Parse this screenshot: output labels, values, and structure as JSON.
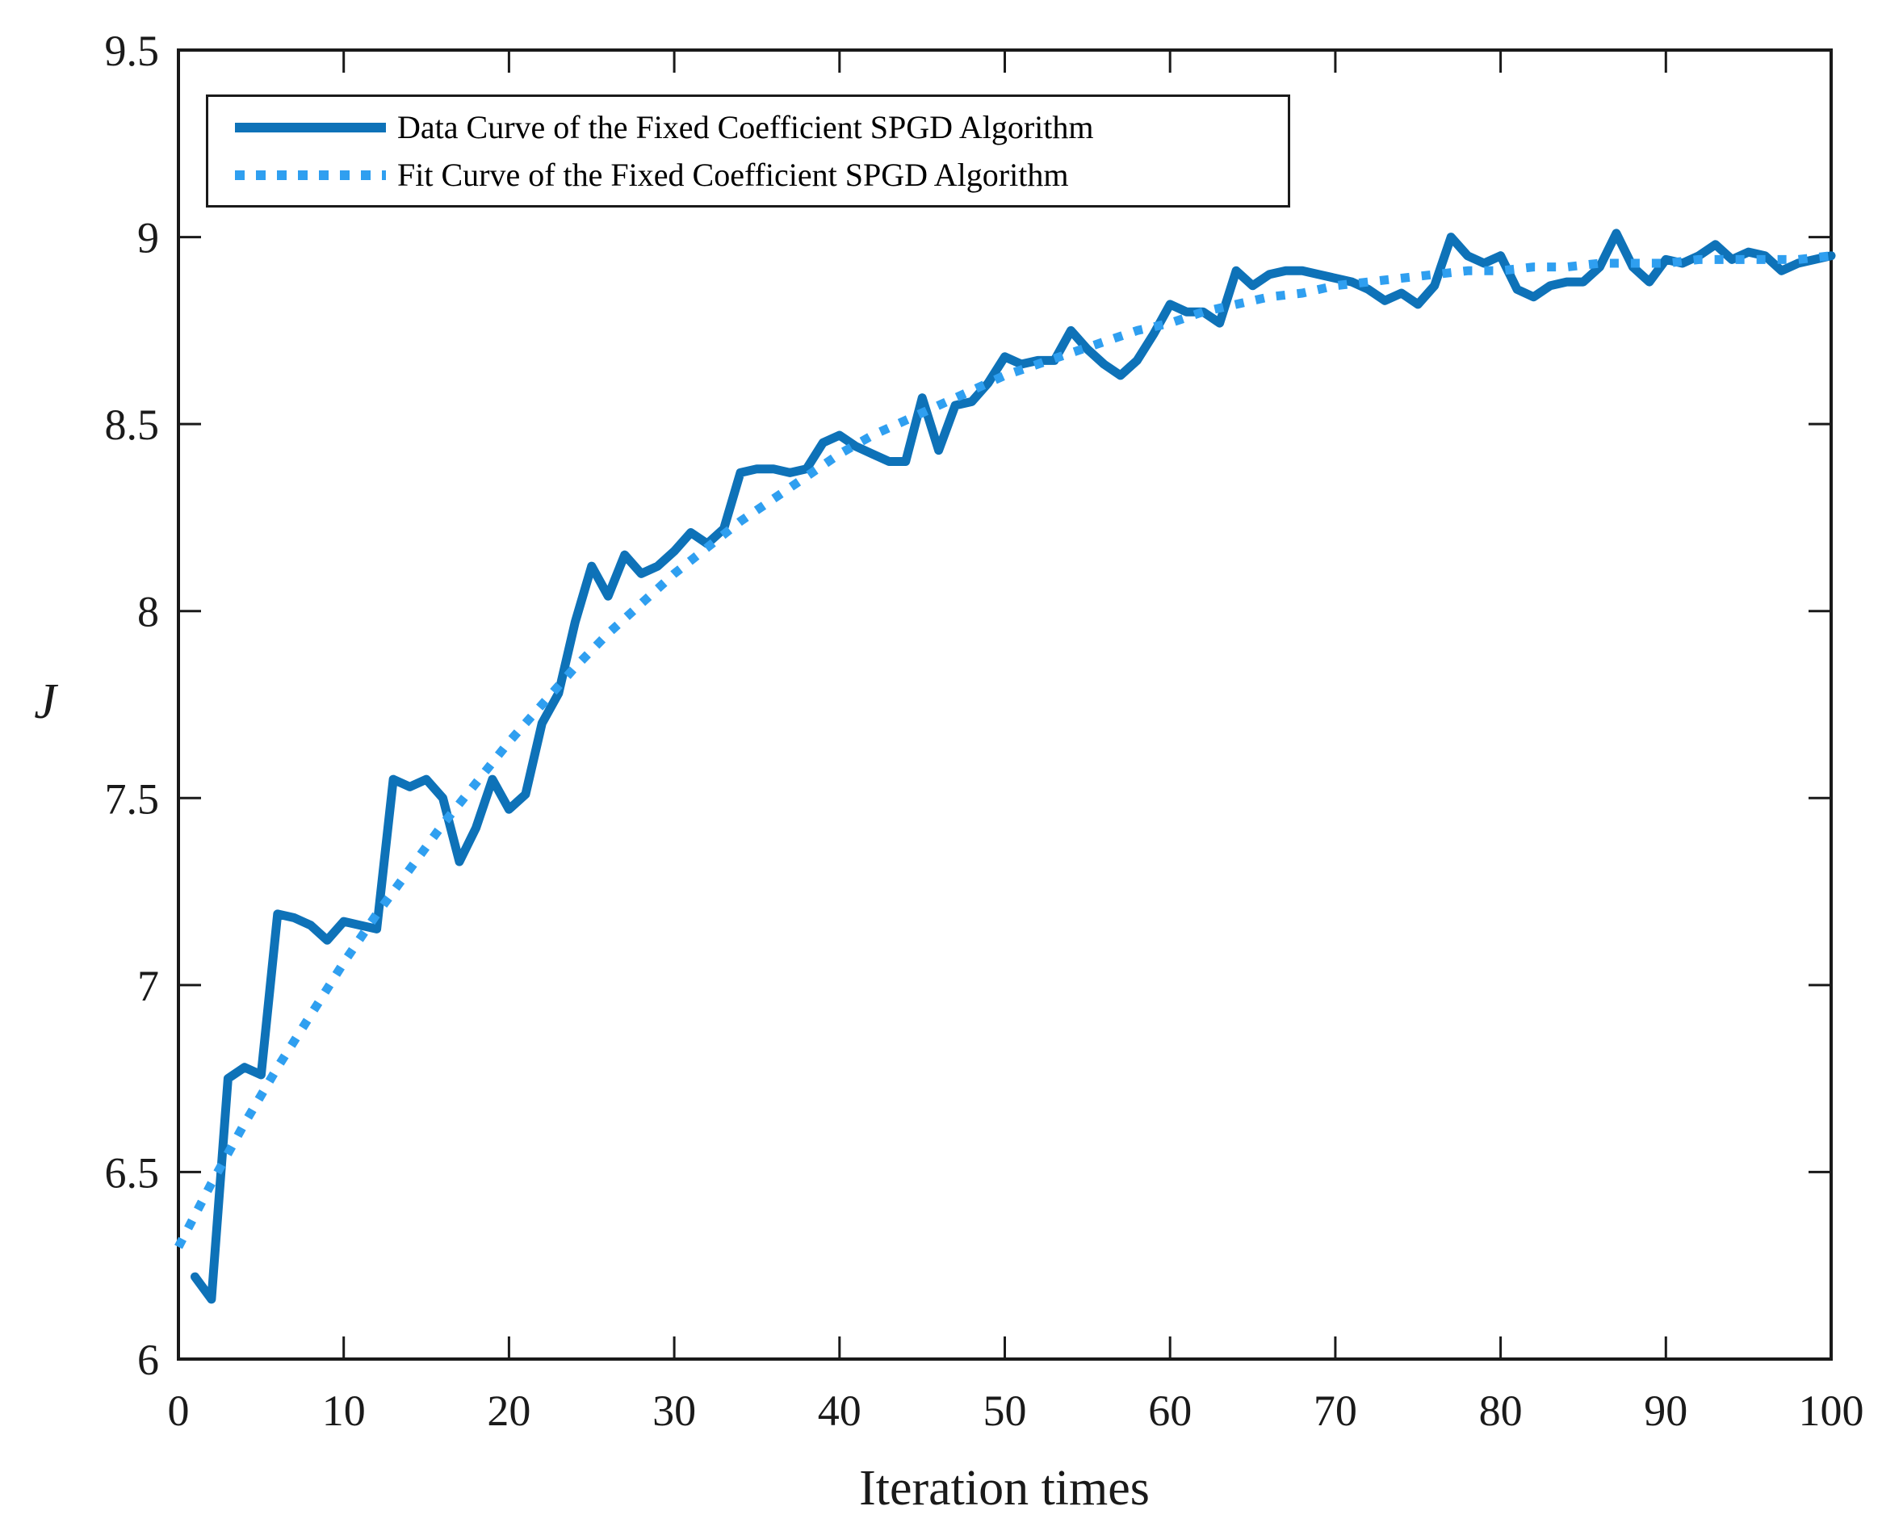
{
  "figure": {
    "background": "#ffffff",
    "axis_color": "#1a1a1a"
  },
  "chart_data": {
    "type": "line",
    "title": "",
    "xlabel": "Iteration times",
    "ylabel": "J",
    "xlim": [
      0,
      100
    ],
    "ylim": [
      6,
      9.5
    ],
    "grid": false,
    "legend_position": "top-left",
    "x_ticks": [
      0,
      10,
      20,
      30,
      40,
      50,
      60,
      70,
      80,
      90,
      100
    ],
    "x_tick_labels": [
      "0",
      "10",
      "20",
      "30",
      "40",
      "50",
      "60",
      "70",
      "80",
      "90",
      "100"
    ],
    "y_ticks": [
      6,
      6.5,
      7,
      7.5,
      8,
      8.5,
      9,
      9.5
    ],
    "y_tick_labels": [
      "6",
      "6.5",
      "7",
      "7.5",
      "8",
      "8.5",
      "9",
      "9.5"
    ],
    "series": [
      {
        "name": "Data Curve of the Fixed Coefficient SPGD Algorithm",
        "style": "solid",
        "color": "#0e72b8",
        "width": 11,
        "x": [
          1,
          2,
          3,
          4,
          5,
          6,
          7,
          8,
          9,
          10,
          11,
          12,
          13,
          14,
          15,
          16,
          17,
          18,
          19,
          20,
          21,
          22,
          23,
          24,
          25,
          26,
          27,
          28,
          29,
          30,
          31,
          32,
          33,
          34,
          35,
          36,
          37,
          38,
          39,
          40,
          41,
          42,
          43,
          44,
          45,
          46,
          47,
          48,
          49,
          50,
          51,
          52,
          53,
          54,
          55,
          56,
          57,
          58,
          59,
          60,
          61,
          62,
          63,
          64,
          65,
          66,
          67,
          68,
          69,
          70,
          71,
          72,
          73,
          74,
          75,
          76,
          77,
          78,
          79,
          80,
          81,
          82,
          83,
          84,
          85,
          86,
          87,
          88,
          89,
          90,
          91,
          92,
          93,
          94,
          95,
          96,
          97,
          98,
          99,
          100
        ],
        "y": [
          6.22,
          6.16,
          6.75,
          6.78,
          6.76,
          7.19,
          7.18,
          7.16,
          7.12,
          7.17,
          7.16,
          7.15,
          7.55,
          7.53,
          7.55,
          7.5,
          7.33,
          7.42,
          7.55,
          7.47,
          7.51,
          7.7,
          7.78,
          7.97,
          8.12,
          8.04,
          8.15,
          8.1,
          8.12,
          8.16,
          8.21,
          8.18,
          8.22,
          8.37,
          8.38,
          8.38,
          8.37,
          8.38,
          8.45,
          8.47,
          8.44,
          8.42,
          8.4,
          8.4,
          8.57,
          8.43,
          8.55,
          8.56,
          8.61,
          8.68,
          8.66,
          8.67,
          8.67,
          8.75,
          8.7,
          8.66,
          8.63,
          8.67,
          8.74,
          8.82,
          8.8,
          8.8,
          8.77,
          8.91,
          8.87,
          8.9,
          8.91,
          8.91,
          8.9,
          8.89,
          8.88,
          8.86,
          8.83,
          8.85,
          8.82,
          8.87,
          9.0,
          8.95,
          8.93,
          8.95,
          8.86,
          8.84,
          8.87,
          8.88,
          8.88,
          8.92,
          9.01,
          8.92,
          8.88,
          8.94,
          8.93,
          8.95,
          8.98,
          8.94,
          8.96,
          8.95,
          8.91,
          8.93,
          8.94,
          8.95
        ]
      },
      {
        "name": "Fit Curve of the Fixed Coefficient SPGD Algorithm",
        "style": "dotted",
        "color": "#2f9ff0",
        "width": 11,
        "x": [
          0,
          2,
          4,
          6,
          8,
          10,
          12,
          14,
          16,
          18,
          20,
          22,
          24,
          26,
          28,
          30,
          32,
          34,
          36,
          38,
          40,
          42,
          44,
          46,
          48,
          50,
          52,
          54,
          56,
          58,
          60,
          62,
          64,
          66,
          68,
          70,
          72,
          74,
          76,
          78,
          80,
          82,
          84,
          86,
          88,
          90,
          92,
          94,
          96,
          98,
          100
        ],
        "y": [
          6.3,
          6.47,
          6.63,
          6.78,
          6.92,
          7.06,
          7.19,
          7.31,
          7.43,
          7.54,
          7.65,
          7.75,
          7.85,
          7.94,
          8.02,
          8.1,
          8.17,
          8.24,
          8.3,
          8.36,
          8.42,
          8.47,
          8.51,
          8.55,
          8.59,
          8.63,
          8.66,
          8.69,
          8.72,
          8.75,
          8.77,
          8.8,
          8.82,
          8.84,
          8.85,
          8.87,
          8.88,
          8.89,
          8.9,
          8.91,
          8.91,
          8.92,
          8.92,
          8.93,
          8.93,
          8.93,
          8.94,
          8.94,
          8.94,
          8.94,
          8.95
        ]
      }
    ]
  }
}
